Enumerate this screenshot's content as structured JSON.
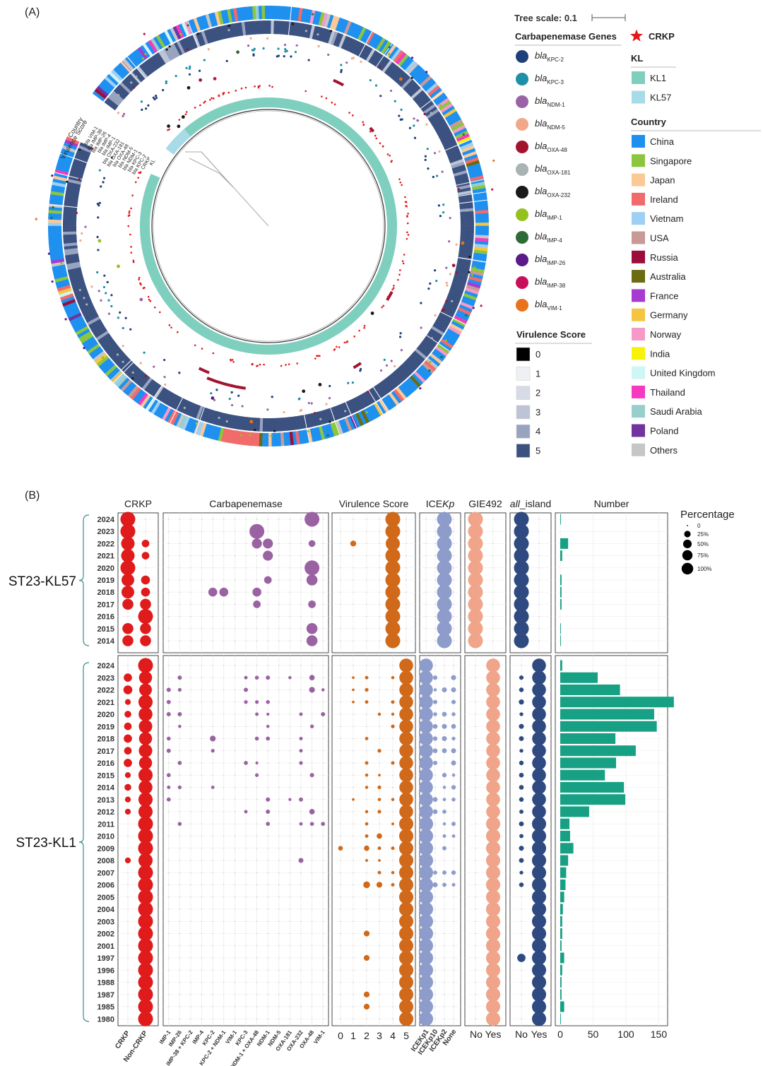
{
  "panel_a": {
    "label": "(A)",
    "tree_scale": "Tree scale: 0.1",
    "ring_labels": [
      "Country",
      "Virulence Score",
      "bla VIM-1",
      "bla IMP-38",
      "bla IMP-26",
      "bla IMP-4",
      "bla IMP-1",
      "bla OXA-232",
      "bla OXA-181",
      "bla OXA-48",
      "bla NDM-5",
      "bla NDM-1",
      "bla KPC-3",
      "bla KPC-2",
      "CRKP",
      "KL"
    ],
    "legend_carbapenemase": {
      "title": "Carbapenemase Genes",
      "items": [
        {
          "base": "bla",
          "sub": "KPC-2",
          "color": "#1f3f7a"
        },
        {
          "base": "bla",
          "sub": "KPC-3",
          "color": "#1d8fa8"
        },
        {
          "base": "bla",
          "sub": "NDM-1",
          "color": "#9a63a8"
        },
        {
          "base": "bla",
          "sub": "NDM-5",
          "color": "#f0a88a"
        },
        {
          "base": "bla",
          "sub": "OXA-48",
          "color": "#a3132e"
        },
        {
          "base": "bla",
          "sub": "OXA-181",
          "color": "#a9b3b3"
        },
        {
          "base": "bla",
          "sub": "OXA-232",
          "color": "#1a1a1a"
        },
        {
          "base": "bla",
          "sub": "IMP-1",
          "color": "#95c11f"
        },
        {
          "base": "bla",
          "sub": "IMP-4",
          "color": "#2e6b36"
        },
        {
          "base": "bla",
          "sub": "IMP-26",
          "color": "#5a1a8a"
        },
        {
          "base": "bla",
          "sub": "IMP-38",
          "color": "#c8105a"
        },
        {
          "base": "bla",
          "sub": "VIM-1",
          "color": "#e8731c"
        }
      ]
    },
    "legend_virulence": {
      "title": "Virulence Score",
      "items": [
        {
          "label": "0",
          "color": "#000000"
        },
        {
          "label": "1",
          "color": "#eef0f4"
        },
        {
          "label": "2",
          "color": "#d6dbe6"
        },
        {
          "label": "3",
          "color": "#bcc4d6"
        },
        {
          "label": "4",
          "color": "#98a3bf"
        },
        {
          "label": "5",
          "color": "#3b5180"
        }
      ]
    },
    "legend_crkp": {
      "label": "CRKP",
      "color": "#e31a1c"
    },
    "legend_kl": {
      "title": "KL",
      "items": [
        {
          "label": "KL1",
          "color": "#7fcfbf"
        },
        {
          "label": "KL57",
          "color": "#a8dbe8"
        }
      ]
    },
    "legend_country": {
      "title": "Country",
      "items": [
        {
          "label": "China",
          "color": "#1e90f0"
        },
        {
          "label": "Singapore",
          "color": "#8cc63f"
        },
        {
          "label": "Japan",
          "color": "#fbc995"
        },
        {
          "label": "Ireland",
          "color": "#f26b6b"
        },
        {
          "label": "Vietnam",
          "color": "#9ecff5"
        },
        {
          "label": "USA",
          "color": "#c89a96"
        },
        {
          "label": "Russia",
          "color": "#9b0e3c"
        },
        {
          "label": "Australia",
          "color": "#6b6b10"
        },
        {
          "label": "France",
          "color": "#a63ad1"
        },
        {
          "label": "Germany",
          "color": "#f5c542"
        },
        {
          "label": "Norway",
          "color": "#f59ac8"
        },
        {
          "label": "India",
          "color": "#f7f20a"
        },
        {
          "label": "United Kingdom",
          "color": "#cff5f5"
        },
        {
          "label": "Thailand",
          "color": "#f53ac0"
        },
        {
          "label": "Saudi Arabia",
          "color": "#96cfcc"
        },
        {
          "label": "Poland",
          "color": "#7033a0"
        },
        {
          "label": "Others",
          "color": "#c6c6c6"
        }
      ]
    }
  },
  "panel_b": {
    "label": "(B)",
    "facet_titles": [
      "CRKP",
      "Carbapenemase",
      "Virulence Score",
      "ICEKp",
      "GIE492",
      "all_island",
      "Number"
    ],
    "size_legend": {
      "title": "Percentage",
      "labels": [
        "0",
        "25%",
        "50%",
        "75%",
        "100%"
      ]
    },
    "colors": {
      "crkp": "#e01b1b",
      "carb": "#9b62a3",
      "vir": "#d06a1a",
      "ice": "#8e9ccb",
      "gie": "#f0a58a",
      "all": "#2e4a80",
      "num": "#17a083"
    }
  },
  "chart_data": {
    "type": "scatter",
    "title": "",
    "groups": [
      {
        "name": "ST23-KL57",
        "years": [
          "2024",
          "2023",
          "2022",
          "2021",
          "2020",
          "2019",
          "2018",
          "2017",
          "2016",
          "2015",
          "2014"
        ],
        "crkp": {
          "categories": [
            "CRKP",
            "Non-CRKP"
          ],
          "values": [
            [
              1,
              0
            ],
            [
              1,
              0
            ],
            [
              0.8,
              0.2
            ],
            [
              0.8,
              0.2
            ],
            [
              1,
              0
            ],
            [
              0.7,
              0.3
            ],
            [
              0.7,
              0.3
            ],
            [
              0.5,
              0.5
            ],
            [
              0,
              1
            ],
            [
              0.5,
              0.5
            ],
            [
              0.5,
              0.5
            ]
          ]
        },
        "carbapenemase": {
          "categories": [
            "IMP-1",
            "IMP-26",
            "IMP-38 + KPC-2",
            "IMP-4",
            "KPC-2",
            "KPC-2 + NDM-1",
            "VIM-1",
            "KPC-3",
            "NDM-1 + OXA-48",
            "NDM-1",
            "NDM-5",
            "OXA-181",
            "OXA-232",
            "OXA-48",
            "VIM-1"
          ],
          "points": [
            {
              "year": "2024",
              "category": "OXA-48",
              "value": 1
            },
            {
              "year": "2023",
              "category": "NDM-1 + OXA-48",
              "value": 1
            },
            {
              "year": "2022",
              "category": "NDM-1 + OXA-48",
              "value": 0.4
            },
            {
              "year": "2022",
              "category": "NDM-1",
              "value": 0.4
            },
            {
              "year": "2022",
              "category": "OXA-48",
              "value": 0.15
            },
            {
              "year": "2021",
              "category": "NDM-1",
              "value": 0.4
            },
            {
              "year": "2020",
              "category": "OXA-48",
              "value": 1
            },
            {
              "year": "2019",
              "category": "NDM-1",
              "value": 0.2
            },
            {
              "year": "2019",
              "category": "OXA-48",
              "value": 0.5
            },
            {
              "year": "2018",
              "category": "KPC-2",
              "value": 0.3
            },
            {
              "year": "2018",
              "category": "KPC-2 + NDM-1",
              "value": 0.3
            },
            {
              "year": "2018",
              "category": "NDM-1 + OXA-48",
              "value": 0.3
            },
            {
              "year": "2017",
              "category": "NDM-1 + OXA-48",
              "value": 0.2
            },
            {
              "year": "2017",
              "category": "OXA-48",
              "value": 0.2
            },
            {
              "year": "2015",
              "category": "OXA-48",
              "value": 0.5
            },
            {
              "year": "2014",
              "category": "OXA-48",
              "value": 0.5
            }
          ]
        },
        "virulence_score": {
          "categories": [
            "0",
            "1",
            "2",
            "3",
            "4",
            "5"
          ],
          "points": [
            {
              "year": "2022",
              "category": "1",
              "value": 0.1
            },
            {
              "year": "2024",
              "category": "4",
              "value": 1
            },
            {
              "year": "2023",
              "category": "4",
              "value": 1
            },
            {
              "year": "2022",
              "category": "4",
              "value": 0.9
            },
            {
              "year": "2021",
              "category": "4",
              "value": 1
            },
            {
              "year": "2020",
              "category": "4",
              "value": 1
            },
            {
              "year": "2019",
              "category": "4",
              "value": 1
            },
            {
              "year": "2018",
              "category": "4",
              "value": 1
            },
            {
              "year": "2017",
              "category": "4",
              "value": 1
            },
            {
              "year": "2016",
              "category": "4",
              "value": 1
            },
            {
              "year": "2015",
              "category": "4",
              "value": 1
            },
            {
              "year": "2014",
              "category": "4",
              "value": 1
            }
          ]
        },
        "icekp": {
          "categories": [
            "ICEKp1",
            "ICEKp10",
            "ICEKp2",
            "None"
          ],
          "note": "all ICEKp2 = 100%"
        },
        "gie492": {
          "categories": [
            "No",
            "Yes"
          ],
          "note": "all No = 100%"
        },
        "all_island": {
          "categories": [
            "No",
            "Yes"
          ],
          "note": "all No = 100%"
        },
        "number": [
          1,
          0,
          12,
          3,
          0,
          2,
          2,
          2,
          0,
          1,
          1
        ]
      },
      {
        "name": "ST23-KL1",
        "years": [
          "2024",
          "2023",
          "2022",
          "2021",
          "2020",
          "2019",
          "2018",
          "2017",
          "2016",
          "2015",
          "2014",
          "2013",
          "2012",
          "2011",
          "2010",
          "2009",
          "2008",
          "2007",
          "2006",
          "2005",
          "2004",
          "2003",
          "2002",
          "2001",
          "1997",
          "1996",
          "1988",
          "1987",
          "1985",
          "1980"
        ],
        "crkp": {
          "categories": [
            "CRKP",
            "Non-CRKP"
          ],
          "values": [
            [
              0,
              1
            ],
            [
              0.25,
              0.75
            ],
            [
              0.3,
              0.7
            ],
            [
              0.1,
              0.9
            ],
            [
              0.15,
              0.85
            ],
            [
              0.2,
              0.8
            ],
            [
              0.25,
              0.75
            ],
            [
              0.2,
              0.8
            ],
            [
              0.25,
              0.75
            ],
            [
              0.1,
              0.9
            ],
            [
              0.15,
              0.85
            ],
            [
              0.1,
              0.9
            ],
            [
              0.1,
              0.9
            ],
            [
              0,
              1
            ],
            [
              0,
              1
            ],
            [
              0,
              1
            ],
            [
              0.1,
              0.9
            ],
            [
              0,
              1
            ],
            [
              0,
              1
            ],
            [
              0,
              1
            ],
            [
              0,
              1
            ],
            [
              0,
              1
            ],
            [
              0,
              1
            ],
            [
              0,
              1
            ],
            [
              0,
              1
            ],
            [
              0,
              1
            ],
            [
              0,
              1
            ],
            [
              0,
              1
            ],
            [
              0,
              1
            ],
            [
              0,
              1
            ]
          ]
        },
        "number": [
          3,
          57,
          91,
          173,
          143,
          147,
          84,
          115,
          85,
          68,
          97,
          99,
          44,
          14,
          15,
          20,
          12,
          9,
          8,
          6,
          4,
          3,
          3,
          2,
          6,
          3,
          2,
          2,
          6,
          1
        ]
      }
    ],
    "xlabels": {
      "crkp": [
        "CRKP",
        "Non-CRKP"
      ],
      "carbapenemase": [
        "IMP-1",
        "IMP-26",
        "IMP-38 + KPC-2",
        "IMP-4",
        "KPC-2",
        "KPC-2 + NDM-1",
        "VIM-1",
        "KPC-3",
        "NDM-1 + OXA-48",
        "NDM-1",
        "NDM-5",
        "OXA-181",
        "OXA-232",
        "OXA-48",
        "VIM-1"
      ],
      "virulence": [
        "0",
        "1",
        "2",
        "3",
        "4",
        "5"
      ],
      "icekp": [
        "ICEKp1",
        "ICEKp10",
        "ICEKp2",
        "None"
      ],
      "gie492": [
        "No",
        "Yes"
      ],
      "all_island": [
        "No",
        "Yes"
      ],
      "number_ticks": [
        "0",
        "50",
        "100",
        "150"
      ]
    },
    "xlim_number": [
      0,
      185
    ]
  }
}
